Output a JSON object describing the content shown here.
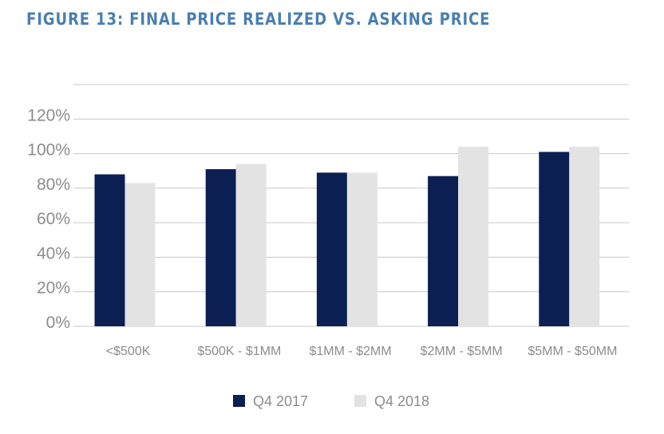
{
  "figure": {
    "title": "FIGURE 13: FINAL PRICE REALIZED VS. ASKING PRICE"
  },
  "colors": {
    "title": "#4a7fb0",
    "series_2017": "#0c1f53",
    "series_2018": "#e3e3e3",
    "grid": "#c8c8c8",
    "text": "#8c8c8c"
  },
  "chart_data": {
    "type": "bar",
    "title": "FIGURE 13: FINAL PRICE REALIZED VS. ASKING PRICE",
    "categories": [
      "<$500K",
      "$500K - $1MM",
      "$1MM - $2MM",
      "$2MM - $5MM",
      "$5MM - $50MM"
    ],
    "series": [
      {
        "name": "Q4 2017",
        "color": "#0c1f53",
        "values": [
          88,
          91,
          89,
          87,
          101
        ]
      },
      {
        "name": "Q4 2018",
        "color": "#e3e3e3",
        "values": [
          83,
          94,
          89,
          104,
          104
        ]
      }
    ],
    "yticks": [
      "0%",
      "20%",
      "40%",
      "60%",
      "80%",
      "100%",
      "120%"
    ],
    "ylim": [
      0,
      140
    ],
    "grid": true,
    "legend_position": "bottom-center"
  }
}
